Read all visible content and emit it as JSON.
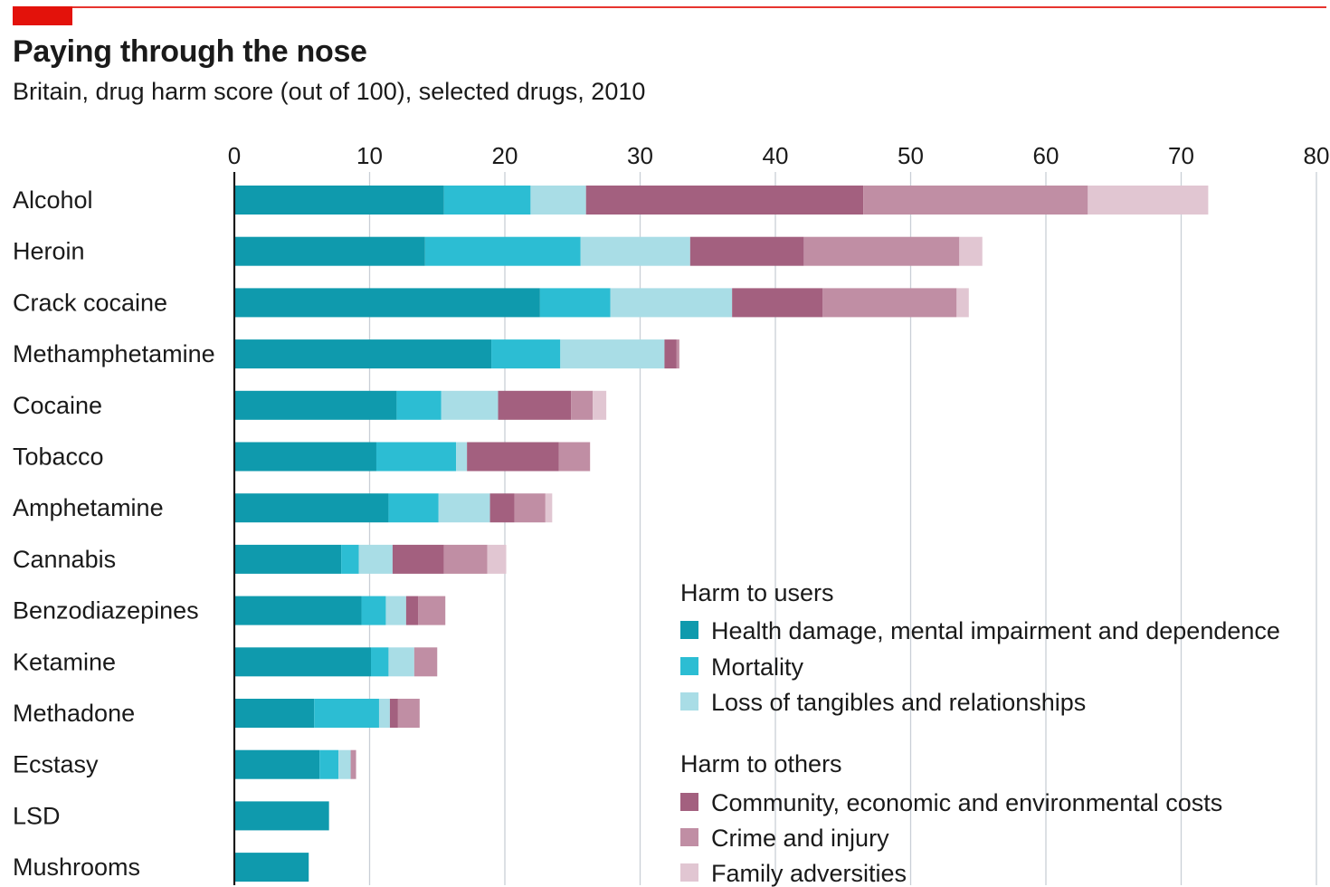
{
  "chart_data": {
    "type": "bar",
    "orientation": "horizontal",
    "stacked": true,
    "title": "Paying through the nose",
    "subtitle": "Britain, drug harm score (out of 100), selected drugs, 2010",
    "xlim": [
      0,
      80
    ],
    "xticks": [
      "0",
      "10",
      "20",
      "30",
      "40",
      "50",
      "60",
      "70",
      "80"
    ],
    "grid": true,
    "categories": [
      "Alcohol",
      "Heroin",
      "Crack cocaine",
      "Methamphetamine",
      "Cocaine",
      "Tobacco",
      "Amphetamine",
      "Cannabis",
      "Benzodiazepines",
      "Ketamine",
      "Methadone",
      "Ecstasy",
      "LSD",
      "Mushrooms"
    ],
    "legend": {
      "placement": "bottom-right",
      "groups": [
        {
          "title": "Harm to users",
          "items": [
            "Health damage, mental impairment and dependence",
            "Mortality",
            "Loss of tangibles and relationships"
          ]
        },
        {
          "title": "Harm to others",
          "items": [
            "Community, economic and environmental costs",
            "Crime and injury",
            "Family adversities"
          ]
        }
      ]
    },
    "series": [
      {
        "name": "Health damage, mental impairment and dependence",
        "color": "#0f9aad",
        "values": [
          15.5,
          14.1,
          22.6,
          19.0,
          12.0,
          10.5,
          11.4,
          7.9,
          9.4,
          10.1,
          5.9,
          6.3,
          7.0,
          5.5
        ]
      },
      {
        "name": "Mortality",
        "color": "#2cbdd3",
        "values": [
          6.4,
          11.5,
          5.2,
          5.1,
          3.3,
          5.9,
          3.7,
          1.3,
          1.8,
          1.3,
          4.8,
          1.4,
          0,
          0
        ]
      },
      {
        "name": "Loss of tangibles and relationships",
        "color": "#a9dde6",
        "values": [
          4.1,
          8.1,
          9.0,
          7.7,
          4.2,
          0.8,
          3.8,
          2.5,
          1.5,
          1.9,
          0.8,
          0.9,
          0,
          0
        ]
      },
      {
        "name": "Community, economic and environmental costs",
        "color": "#a3607f",
        "values": [
          20.5,
          8.4,
          6.7,
          0.9,
          5.4,
          6.8,
          1.8,
          3.8,
          0.9,
          0,
          0.6,
          0,
          0,
          0
        ]
      },
      {
        "name": "Crime and injury",
        "color": "#c08ea4",
        "values": [
          16.6,
          11.5,
          9.9,
          0.2,
          1.6,
          2.3,
          2.3,
          3.2,
          2.0,
          1.7,
          1.6,
          0.4,
          0,
          0
        ]
      },
      {
        "name": "Family adversities",
        "color": "#e1c6d2",
        "values": [
          8.9,
          1.7,
          0.9,
          0,
          1.0,
          0,
          0.5,
          1.4,
          0,
          0,
          0,
          0,
          0,
          0
        ]
      }
    ]
  }
}
